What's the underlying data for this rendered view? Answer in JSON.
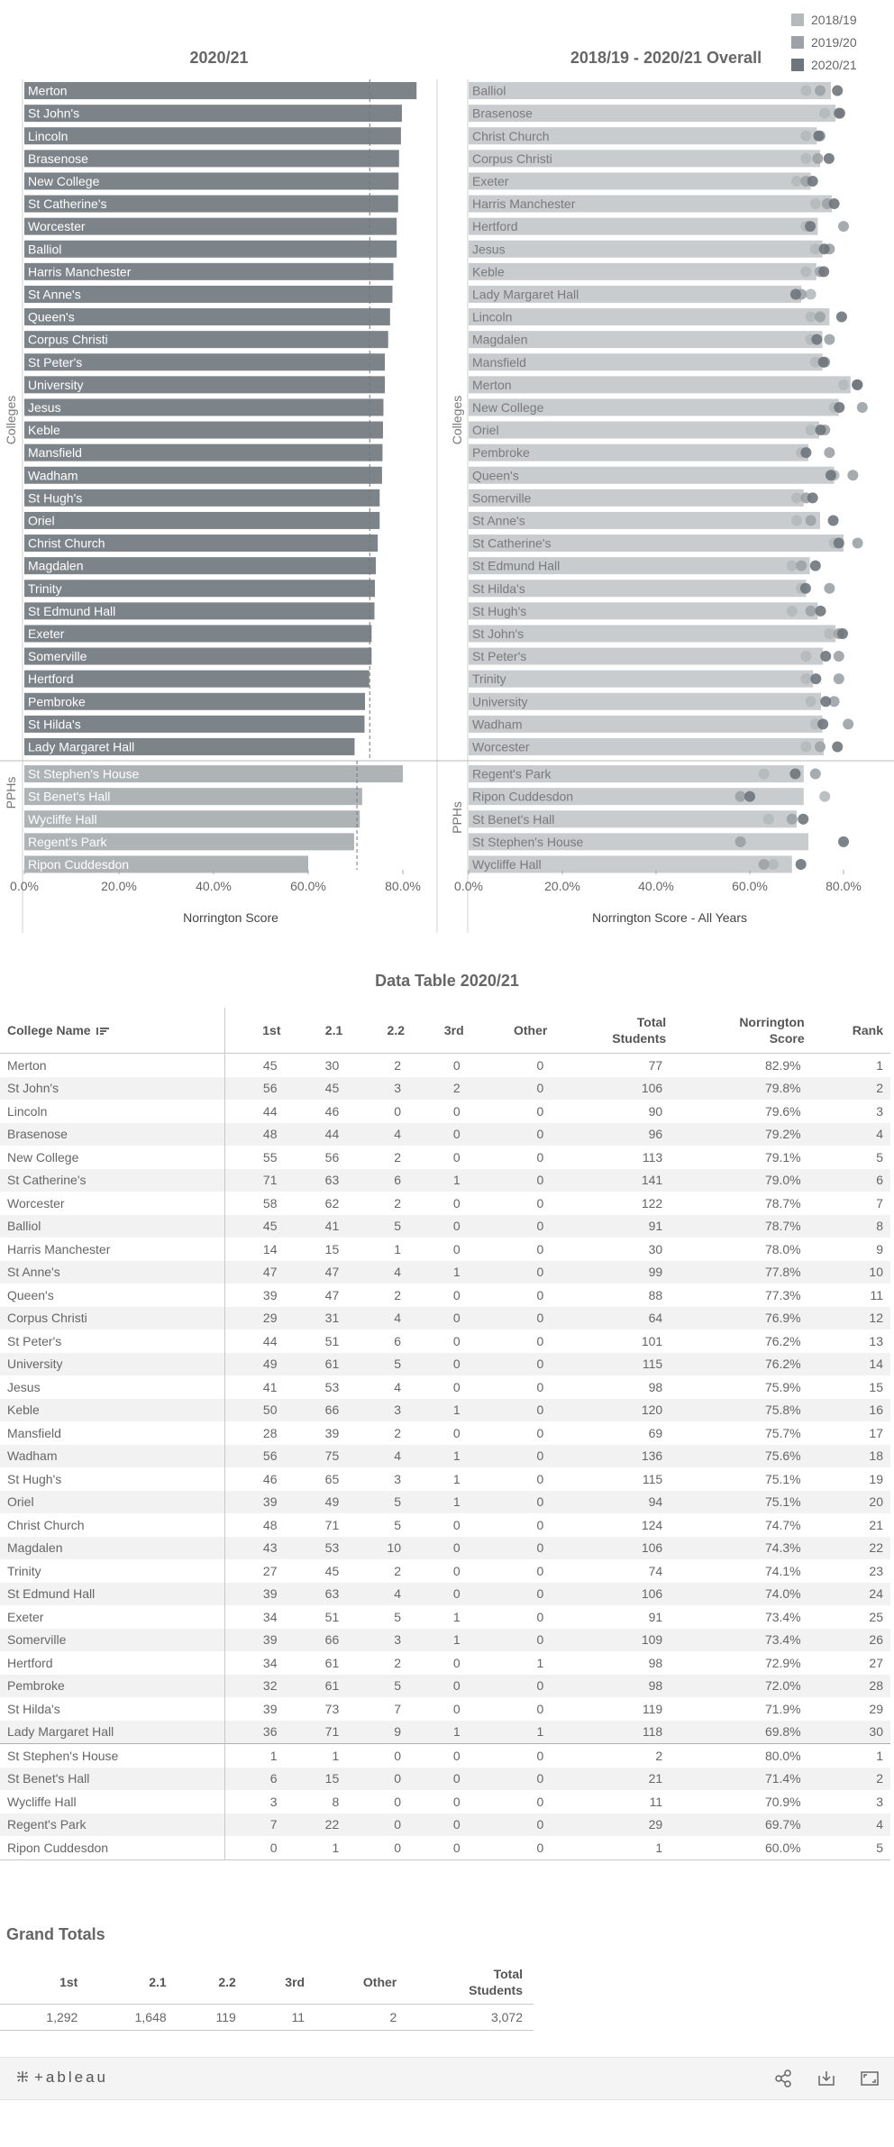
{
  "legend": [
    {
      "label": "2018/19",
      "color": "#b4b9bc"
    },
    {
      "label": "2019/20",
      "color": "#9ca2a7"
    },
    {
      "label": "2020/21",
      "color": "#6e757c"
    }
  ],
  "chart_data": [
    {
      "type": "bar",
      "title": "2020/21",
      "xlabel": "Norrington Score",
      "ylabel": "Colleges",
      "xlim": [
        0,
        100
      ],
      "xticks": [
        "0.0%",
        "20.0%",
        "40.0%",
        "60.0%",
        "80.0%"
      ],
      "reference_line": 73,
      "groups": [
        {
          "name": "Colleges",
          "categories": [
            "Merton",
            "St John's",
            "Lincoln",
            "Brasenose",
            "New College",
            "St Catherine's",
            "Worcester",
            "Balliol",
            "Harris Manchester",
            "St Anne's",
            "Queen's",
            "Corpus Christi",
            "St Peter's",
            "University",
            "Jesus",
            "Keble",
            "Mansfield",
            "Wadham",
            "St Hugh's",
            "Oriel",
            "Christ Church",
            "Magdalen",
            "Trinity",
            "St Edmund Hall",
            "Exeter",
            "Somerville",
            "Hertford",
            "Pembroke",
            "St Hilda's",
            "Lady Margaret Hall"
          ],
          "values": [
            82.9,
            79.8,
            79.6,
            79.2,
            79.1,
            79.0,
            78.7,
            78.7,
            78.0,
            77.8,
            77.3,
            76.9,
            76.2,
            76.2,
            75.9,
            75.8,
            75.7,
            75.6,
            75.1,
            75.1,
            74.7,
            74.3,
            74.1,
            74.0,
            73.4,
            73.4,
            72.9,
            72.0,
            71.9,
            69.8
          ]
        },
        {
          "name": "PPHs",
          "categories": [
            "St Stephen's House",
            "St Benet's Hall",
            "Wycliffe Hall",
            "Regent's Park",
            "Ripon Cuddesdon"
          ],
          "values": [
            80.0,
            71.4,
            70.9,
            69.7,
            60.0
          ]
        }
      ]
    },
    {
      "type": "scatter",
      "title": "2018/19 - 2020/21 Overall",
      "xlabel": "Norrington Score - All Years",
      "ylabel": "Colleges",
      "xlim": [
        0,
        100
      ],
      "xticks": [
        "0.0%",
        "20.0%",
        "40.0%",
        "60.0%",
        "80.0%"
      ],
      "series": [
        "2018/19",
        "2019/20",
        "2020/21"
      ],
      "groups": [
        {
          "name": "Colleges",
          "rows": [
            {
              "name": "Balliol",
              "overall": 77.3,
              "points": [
                72.0,
                75.0,
                78.7
              ]
            },
            {
              "name": "Brasenose",
              "overall": 78.3,
              "points": [
                76.0,
                79.0,
                79.2
              ]
            },
            {
              "name": "Christ Church",
              "overall": 74.3,
              "points": [
                72.0,
                75.0,
                74.7
              ]
            },
            {
              "name": "Corpus Christi",
              "overall": 75.0,
              "points": [
                72.0,
                74.5,
                76.9
              ]
            },
            {
              "name": "Exeter",
              "overall": 73.0,
              "points": [
                70.0,
                72.0,
                73.4
              ]
            },
            {
              "name": "Harris Manchester",
              "overall": 77.5,
              "points": [
                74.0,
                76.5,
                78.0
              ]
            },
            {
              "name": "Hertford",
              "overall": 74.5,
              "points": [
                72.0,
                80.0,
                72.9
              ]
            },
            {
              "name": "Jesus",
              "overall": 75.5,
              "points": [
                74.0,
                77.0,
                75.9
              ]
            },
            {
              "name": "Keble",
              "overall": 74.2,
              "points": [
                72.0,
                75.0,
                75.8
              ]
            },
            {
              "name": "Lady Margaret Hall",
              "overall": 71.0,
              "points": [
                73.0,
                71.0,
                69.8
              ]
            },
            {
              "name": "Lincoln",
              "overall": 77.0,
              "points": [
                73.0,
                75.0,
                79.6
              ]
            },
            {
              "name": "Magdalen",
              "overall": 75.5,
              "points": [
                73.0,
                77.0,
                74.3
              ]
            },
            {
              "name": "Mansfield",
              "overall": 75.5,
              "points": [
                74.0,
                76.0,
                75.7
              ]
            },
            {
              "name": "Merton",
              "overall": 81.5,
              "points": [
                80.0,
                83.0,
                82.9
              ]
            },
            {
              "name": "New College",
              "overall": 79.0,
              "points": [
                78.0,
                84.0,
                79.1
              ]
            },
            {
              "name": "Oriel",
              "overall": 74.8,
              "points": [
                73.0,
                76.0,
                75.1
              ]
            },
            {
              "name": "Pembroke",
              "overall": 72.5,
              "points": [
                71.0,
                77.0,
                72.0
              ]
            },
            {
              "name": "Queen's",
              "overall": 78.0,
              "points": [
                78.0,
                82.0,
                77.3
              ]
            },
            {
              "name": "Somerville",
              "overall": 71.5,
              "points": [
                70.0,
                72.0,
                73.4
              ]
            },
            {
              "name": "St Anne's",
              "overall": 75.0,
              "points": [
                70.0,
                73.0,
                77.8
              ]
            },
            {
              "name": "St Catherine's",
              "overall": 80.0,
              "points": [
                78.0,
                83.0,
                79.0
              ]
            },
            {
              "name": "St Edmund Hall",
              "overall": 72.8,
              "points": [
                69.0,
                71.0,
                74.0
              ]
            },
            {
              "name": "St Hilda's",
              "overall": 72.0,
              "points": [
                71.0,
                77.0,
                71.9
              ]
            },
            {
              "name": "St Hugh's",
              "overall": 74.5,
              "points": [
                69.0,
                73.0,
                75.1
              ]
            },
            {
              "name": "St John's",
              "overall": 78.3,
              "points": [
                77.0,
                79.0,
                79.8
              ]
            },
            {
              "name": "St Peter's",
              "overall": 75.6,
              "points": [
                72.0,
                79.0,
                76.2
              ]
            },
            {
              "name": "Trinity",
              "overall": 73.5,
              "points": [
                72.0,
                79.0,
                74.1
              ]
            },
            {
              "name": "University",
              "overall": 75.2,
              "points": [
                73.0,
                78.0,
                76.2
              ]
            },
            {
              "name": "Wadham",
              "overall": 75.5,
              "points": [
                74.0,
                81.0,
                75.6
              ]
            },
            {
              "name": "Worcester",
              "overall": 75.8,
              "points": [
                72.0,
                75.0,
                78.7
              ]
            }
          ]
        },
        {
          "name": "PPHs",
          "rows": [
            {
              "name": "Regent's Park",
              "overall": 71.5,
              "points": [
                63.0,
                74.0,
                69.7
              ]
            },
            {
              "name": "Ripon Cuddesdon",
              "overall": 71.5,
              "points": [
                76.0,
                58.0,
                60.0
              ]
            },
            {
              "name": "St Benet's Hall",
              "overall": 70.0,
              "points": [
                64.0,
                69.0,
                71.4
              ]
            },
            {
              "name": "St Stephen's House",
              "overall": 72.5,
              "points": [
                58.0,
                58.0,
                80.0
              ]
            },
            {
              "name": "Wycliffe Hall",
              "overall": 69.0,
              "points": [
                65.0,
                63.0,
                70.9
              ]
            }
          ]
        }
      ]
    }
  ],
  "table": {
    "title": "Data Table 2020/21",
    "headers": {
      "college": "College Name",
      "first": "1st",
      "two_one": "2.1",
      "two_two": "2.2",
      "third": "3rd",
      "other": "Other",
      "total_a": "Total",
      "total_b": "Students",
      "score_a": "Norrington",
      "score_b": "Score",
      "rank": "Rank"
    },
    "rows": [
      {
        "name": "Merton",
        "c1": "45",
        "c21": "30",
        "c22": "2",
        "c3": "0",
        "other": "0",
        "total": "77",
        "score": "82.9%",
        "rank": "1"
      },
      {
        "name": "St John's",
        "c1": "56",
        "c21": "45",
        "c22": "3",
        "c3": "2",
        "other": "0",
        "total": "106",
        "score": "79.8%",
        "rank": "2"
      },
      {
        "name": "Lincoln",
        "c1": "44",
        "c21": "46",
        "c22": "0",
        "c3": "0",
        "other": "0",
        "total": "90",
        "score": "79.6%",
        "rank": "3"
      },
      {
        "name": "Brasenose",
        "c1": "48",
        "c21": "44",
        "c22": "4",
        "c3": "0",
        "other": "0",
        "total": "96",
        "score": "79.2%",
        "rank": "4"
      },
      {
        "name": "New College",
        "c1": "55",
        "c21": "56",
        "c22": "2",
        "c3": "0",
        "other": "0",
        "total": "113",
        "score": "79.1%",
        "rank": "5"
      },
      {
        "name": "St Catherine's",
        "c1": "71",
        "c21": "63",
        "c22": "6",
        "c3": "1",
        "other": "0",
        "total": "141",
        "score": "79.0%",
        "rank": "6"
      },
      {
        "name": "Worcester",
        "c1": "58",
        "c21": "62",
        "c22": "2",
        "c3": "0",
        "other": "0",
        "total": "122",
        "score": "78.7%",
        "rank": "7"
      },
      {
        "name": "Balliol",
        "c1": "45",
        "c21": "41",
        "c22": "5",
        "c3": "0",
        "other": "0",
        "total": "91",
        "score": "78.7%",
        "rank": "8"
      },
      {
        "name": "Harris Manchester",
        "c1": "14",
        "c21": "15",
        "c22": "1",
        "c3": "0",
        "other": "0",
        "total": "30",
        "score": "78.0%",
        "rank": "9"
      },
      {
        "name": "St Anne's",
        "c1": "47",
        "c21": "47",
        "c22": "4",
        "c3": "1",
        "other": "0",
        "total": "99",
        "score": "77.8%",
        "rank": "10"
      },
      {
        "name": "Queen's",
        "c1": "39",
        "c21": "47",
        "c22": "2",
        "c3": "0",
        "other": "0",
        "total": "88",
        "score": "77.3%",
        "rank": "11"
      },
      {
        "name": "Corpus Christi",
        "c1": "29",
        "c21": "31",
        "c22": "4",
        "c3": "0",
        "other": "0",
        "total": "64",
        "score": "76.9%",
        "rank": "12"
      },
      {
        "name": "St Peter's",
        "c1": "44",
        "c21": "51",
        "c22": "6",
        "c3": "0",
        "other": "0",
        "total": "101",
        "score": "76.2%",
        "rank": "13"
      },
      {
        "name": "University",
        "c1": "49",
        "c21": "61",
        "c22": "5",
        "c3": "0",
        "other": "0",
        "total": "115",
        "score": "76.2%",
        "rank": "14"
      },
      {
        "name": "Jesus",
        "c1": "41",
        "c21": "53",
        "c22": "4",
        "c3": "0",
        "other": "0",
        "total": "98",
        "score": "75.9%",
        "rank": "15"
      },
      {
        "name": "Keble",
        "c1": "50",
        "c21": "66",
        "c22": "3",
        "c3": "1",
        "other": "0",
        "total": "120",
        "score": "75.8%",
        "rank": "16"
      },
      {
        "name": "Mansfield",
        "c1": "28",
        "c21": "39",
        "c22": "2",
        "c3": "0",
        "other": "0",
        "total": "69",
        "score": "75.7%",
        "rank": "17"
      },
      {
        "name": "Wadham",
        "c1": "56",
        "c21": "75",
        "c22": "4",
        "c3": "1",
        "other": "0",
        "total": "136",
        "score": "75.6%",
        "rank": "18"
      },
      {
        "name": "St Hugh's",
        "c1": "46",
        "c21": "65",
        "c22": "3",
        "c3": "1",
        "other": "0",
        "total": "115",
        "score": "75.1%",
        "rank": "19"
      },
      {
        "name": "Oriel",
        "c1": "39",
        "c21": "49",
        "c22": "5",
        "c3": "1",
        "other": "0",
        "total": "94",
        "score": "75.1%",
        "rank": "20"
      },
      {
        "name": "Christ Church",
        "c1": "48",
        "c21": "71",
        "c22": "5",
        "c3": "0",
        "other": "0",
        "total": "124",
        "score": "74.7%",
        "rank": "21"
      },
      {
        "name": "Magdalen",
        "c1": "43",
        "c21": "53",
        "c22": "10",
        "c3": "0",
        "other": "0",
        "total": "106",
        "score": "74.3%",
        "rank": "22"
      },
      {
        "name": "Trinity",
        "c1": "27",
        "c21": "45",
        "c22": "2",
        "c3": "0",
        "other": "0",
        "total": "74",
        "score": "74.1%",
        "rank": "23"
      },
      {
        "name": "St Edmund Hall",
        "c1": "39",
        "c21": "63",
        "c22": "4",
        "c3": "0",
        "other": "0",
        "total": "106",
        "score": "74.0%",
        "rank": "24"
      },
      {
        "name": "Exeter",
        "c1": "34",
        "c21": "51",
        "c22": "5",
        "c3": "1",
        "other": "0",
        "total": "91",
        "score": "73.4%",
        "rank": "25"
      },
      {
        "name": "Somerville",
        "c1": "39",
        "c21": "66",
        "c22": "3",
        "c3": "1",
        "other": "0",
        "total": "109",
        "score": "73.4%",
        "rank": "26"
      },
      {
        "name": "Hertford",
        "c1": "34",
        "c21": "61",
        "c22": "2",
        "c3": "0",
        "other": "1",
        "total": "98",
        "score": "72.9%",
        "rank": "27"
      },
      {
        "name": "Pembroke",
        "c1": "32",
        "c21": "61",
        "c22": "5",
        "c3": "0",
        "other": "0",
        "total": "98",
        "score": "72.0%",
        "rank": "28"
      },
      {
        "name": "St Hilda's",
        "c1": "39",
        "c21": "73",
        "c22": "7",
        "c3": "0",
        "other": "0",
        "total": "119",
        "score": "71.9%",
        "rank": "29"
      },
      {
        "name": "Lady Margaret Hall",
        "c1": "36",
        "c21": "71",
        "c22": "9",
        "c3": "1",
        "other": "1",
        "total": "118",
        "score": "69.8%",
        "rank": "30"
      },
      {
        "name": "St Stephen's House",
        "c1": "1",
        "c21": "1",
        "c22": "0",
        "c3": "0",
        "other": "0",
        "total": "2",
        "score": "80.0%",
        "rank": "1"
      },
      {
        "name": "St Benet's Hall",
        "c1": "6",
        "c21": "15",
        "c22": "0",
        "c3": "0",
        "other": "0",
        "total": "21",
        "score": "71.4%",
        "rank": "2"
      },
      {
        "name": "Wycliffe Hall",
        "c1": "3",
        "c21": "8",
        "c22": "0",
        "c3": "0",
        "other": "0",
        "total": "11",
        "score": "70.9%",
        "rank": "3"
      },
      {
        "name": "Regent's Park",
        "c1": "7",
        "c21": "22",
        "c22": "0",
        "c3": "0",
        "other": "0",
        "total": "29",
        "score": "69.7%",
        "rank": "4"
      },
      {
        "name": "Ripon Cuddesdon",
        "c1": "0",
        "c21": "1",
        "c22": "0",
        "c3": "0",
        "other": "0",
        "total": "1",
        "score": "60.0%",
        "rank": "5"
      }
    ]
  },
  "grand_totals": {
    "title": "Grand Totals",
    "headers": {
      "first": "1st",
      "two_one": "2.1",
      "two_two": "2.2",
      "third": "3rd",
      "other": "Other",
      "total_a": "Total",
      "total_b": "Students"
    },
    "values": {
      "first": "1,292",
      "two_one": "1,648",
      "two_two": "119",
      "third": "11",
      "other": "2",
      "total": "3,072"
    }
  },
  "footer": {
    "brand": "+ableau",
    "icons": [
      "share-icon",
      "download-icon",
      "fullscreen-icon"
    ]
  }
}
